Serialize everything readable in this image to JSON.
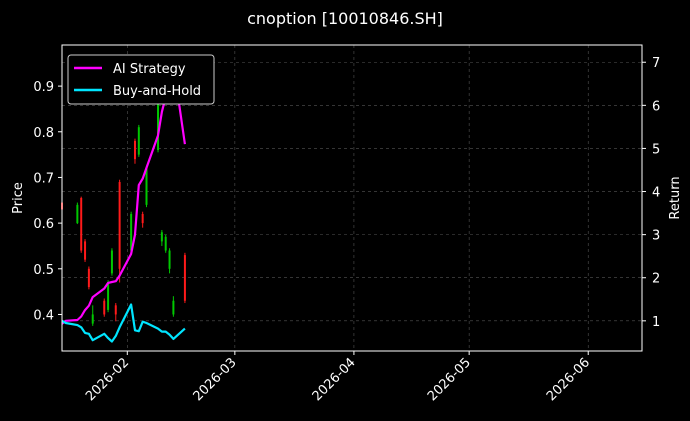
{
  "chart_data": {
    "type": "line",
    "title": "cnoption [10010846.SH]",
    "xlabel": "",
    "ylabel": "Price",
    "ylabel_right": "Return",
    "x_ticks": [
      "2026-02",
      "2026-03",
      "2026-04",
      "2026-05",
      "2026-06"
    ],
    "x_range": [
      "2026-01-15",
      "2026-06-15"
    ],
    "y_ticks": [
      0.4,
      0.5,
      0.6,
      0.7,
      0.8,
      0.9
    ],
    "ylim": [
      0.32,
      0.99
    ],
    "y2_ticks": [
      1,
      2,
      3,
      4,
      5,
      6,
      7
    ],
    "y2lim": [
      0.3,
      7.4
    ],
    "grid": true,
    "legend_position": "top-left",
    "background": "#000000",
    "candles": [
      {
        "date": "2026-01-15",
        "open": 0.645,
        "close": 0.63,
        "high": 0.648,
        "low": 0.628
      },
      {
        "date": "2026-01-19",
        "open": 0.6,
        "close": 0.64,
        "high": 0.645,
        "low": 0.598
      },
      {
        "date": "2026-01-20",
        "open": 0.655,
        "close": 0.54,
        "high": 0.658,
        "low": 0.535
      },
      {
        "date": "2026-01-21",
        "open": 0.56,
        "close": 0.52,
        "high": 0.565,
        "low": 0.515
      },
      {
        "date": "2026-01-22",
        "open": 0.5,
        "close": 0.46,
        "high": 0.505,
        "low": 0.455
      },
      {
        "date": "2026-01-23",
        "open": 0.38,
        "close": 0.4,
        "high": 0.42,
        "low": 0.375
      },
      {
        "date": "2026-01-26",
        "open": 0.43,
        "close": 0.4,
        "high": 0.435,
        "low": 0.395
      },
      {
        "date": "2026-01-27",
        "open": 0.41,
        "close": 0.47,
        "high": 0.475,
        "low": 0.405
      },
      {
        "date": "2026-01-28",
        "open": 0.49,
        "close": 0.54,
        "high": 0.545,
        "low": 0.485
      },
      {
        "date": "2026-01-29",
        "open": 0.42,
        "close": 0.4,
        "high": 0.425,
        "low": 0.385
      },
      {
        "date": "2026-01-30",
        "open": 0.69,
        "close": 0.5,
        "high": 0.695,
        "low": 0.47
      },
      {
        "date": "2026-02-02",
        "open": 0.54,
        "close": 0.62,
        "high": 0.625,
        "low": 0.53
      },
      {
        "date": "2026-02-03",
        "open": 0.78,
        "close": 0.74,
        "high": 0.785,
        "low": 0.73
      },
      {
        "date": "2026-02-04",
        "open": 0.75,
        "close": 0.81,
        "high": 0.815,
        "low": 0.745
      },
      {
        "date": "2026-02-05",
        "open": 0.62,
        "close": 0.6,
        "high": 0.625,
        "low": 0.59
      },
      {
        "date": "2026-02-06",
        "open": 0.64,
        "close": 0.72,
        "high": 0.725,
        "low": 0.635
      },
      {
        "date": "2026-02-09",
        "open": 0.76,
        "close": 0.92,
        "high": 0.93,
        "low": 0.755
      },
      {
        "date": "2026-02-10",
        "open": 0.56,
        "close": 0.58,
        "high": 0.585,
        "low": 0.55
      },
      {
        "date": "2026-02-11",
        "open": 0.54,
        "close": 0.57,
        "high": 0.575,
        "low": 0.535
      },
      {
        "date": "2026-02-12",
        "open": 0.5,
        "close": 0.54,
        "high": 0.545,
        "low": 0.49
      },
      {
        "date": "2026-02-13",
        "open": 0.4,
        "close": 0.43,
        "high": 0.44,
        "low": 0.395
      },
      {
        "date": "2026-02-16",
        "open": 0.53,
        "close": 0.43,
        "high": 0.535,
        "low": 0.425
      }
    ],
    "series": [
      {
        "name": "AI Strategy",
        "color": "#ff00ff",
        "axis": "right",
        "points": [
          [
            "2026-01-15",
            0.93
          ],
          [
            "2026-01-16",
            1.0
          ],
          [
            "2026-01-19",
            1.02
          ],
          [
            "2026-01-20",
            1.1
          ],
          [
            "2026-01-21",
            1.25
          ],
          [
            "2026-01-22",
            1.35
          ],
          [
            "2026-01-23",
            1.55
          ],
          [
            "2026-01-26",
            1.75
          ],
          [
            "2026-01-27",
            1.88
          ],
          [
            "2026-01-28",
            1.9
          ],
          [
            "2026-01-29",
            1.92
          ],
          [
            "2026-01-30",
            2.05
          ],
          [
            "2026-02-02",
            2.55
          ],
          [
            "2026-02-03",
            3.0
          ],
          [
            "2026-02-04",
            4.15
          ],
          [
            "2026-02-05",
            4.3
          ],
          [
            "2026-02-06",
            4.55
          ],
          [
            "2026-02-09",
            5.3
          ],
          [
            "2026-02-10",
            5.85
          ],
          [
            "2026-02-11",
            6.2
          ],
          [
            "2026-02-12",
            6.5
          ],
          [
            "2026-02-13",
            6.95
          ],
          [
            "2026-02-16",
            5.1
          ]
        ]
      },
      {
        "name": "Buy-and-Hold",
        "color": "#00e5ff",
        "axis": "right",
        "points": [
          [
            "2026-01-15",
            1.0
          ],
          [
            "2026-01-16",
            0.95
          ],
          [
            "2026-01-19",
            0.9
          ],
          [
            "2026-01-20",
            0.85
          ],
          [
            "2026-01-21",
            0.72
          ],
          [
            "2026-01-22",
            0.7
          ],
          [
            "2026-01-23",
            0.55
          ],
          [
            "2026-01-26",
            0.7
          ],
          [
            "2026-01-27",
            0.6
          ],
          [
            "2026-01-28",
            0.52
          ],
          [
            "2026-01-29",
            0.65
          ],
          [
            "2026-01-30",
            0.85
          ],
          [
            "2026-02-02",
            1.38
          ],
          [
            "2026-02-03",
            0.78
          ],
          [
            "2026-02-04",
            0.76
          ],
          [
            "2026-02-05",
            0.98
          ],
          [
            "2026-02-06",
            0.95
          ],
          [
            "2026-02-09",
            0.82
          ],
          [
            "2026-02-10",
            0.75
          ],
          [
            "2026-02-11",
            0.75
          ],
          [
            "2026-02-12",
            0.68
          ],
          [
            "2026-02-13",
            0.58
          ],
          [
            "2026-02-16",
            0.82
          ]
        ]
      }
    ]
  },
  "colors": {
    "up": "#00c800",
    "down": "#ff1a1a",
    "grid": "#555555",
    "axis": "#ffffff"
  }
}
